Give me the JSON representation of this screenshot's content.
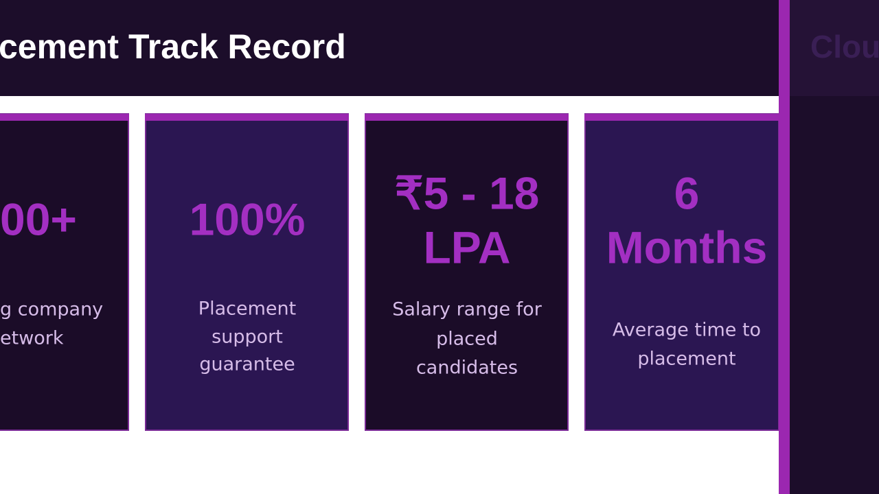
{
  "header": {
    "title": "cement Track Record"
  },
  "cards": [
    {
      "value": [
        "00+"
      ],
      "description": [
        "g company",
        "etwork"
      ]
    },
    {
      "value": [
        "100%"
      ],
      "description": [
        "Placement",
        "support",
        "guarantee"
      ]
    },
    {
      "value": [
        "₹5 - 18",
        "LPA"
      ],
      "description": [
        "Salary range for",
        "placed",
        "candidates"
      ]
    },
    {
      "value": [
        "6",
        "Months"
      ],
      "description": [
        "Average time to",
        "placement"
      ]
    }
  ],
  "side": {
    "title": "Clou"
  }
}
